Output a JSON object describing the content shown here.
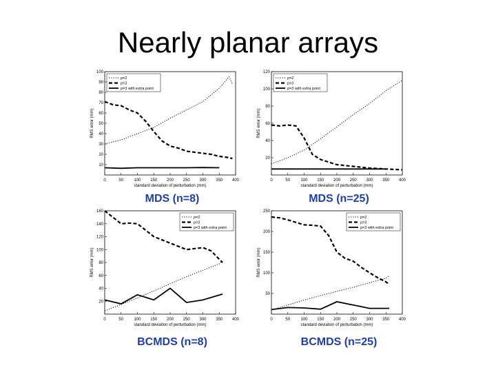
{
  "slide": {
    "title": "Nearly planar arrays"
  },
  "colors": {
    "caption": "#1f3fa6",
    "line": "#000000"
  },
  "chart_data": [
    {
      "type": "line",
      "caption": "MDS (n=8)",
      "xlabel": "standard deviation of perturbation (mm)",
      "ylabel": "RMS error (mm)",
      "xlim": [
        0,
        400
      ],
      "ylim": [
        0,
        100
      ],
      "xticks": [
        0,
        50,
        100,
        150,
        200,
        250,
        300,
        350,
        400
      ],
      "yticks": [
        10,
        20,
        30,
        40,
        50,
        60,
        70,
        80,
        90,
        100
      ],
      "legend": "top-left",
      "series": [
        {
          "name": "p=2",
          "style": "dotted",
          "x": [
            0,
            50,
            100,
            150,
            200,
            250,
            300,
            350,
            380,
            390
          ],
          "y": [
            30,
            34,
            40,
            46,
            55,
            63,
            71,
            84,
            95,
            88
          ]
        },
        {
          "name": "p=3",
          "style": "dashed",
          "x": [
            0,
            25,
            50,
            75,
            100,
            125,
            150,
            175,
            200,
            225,
            250,
            275,
            300,
            325,
            350,
            375,
            390
          ],
          "y": [
            71,
            68,
            67,
            63,
            60,
            52,
            42,
            33,
            28,
            26,
            23,
            22,
            21,
            20,
            18,
            17,
            16
          ]
        },
        {
          "name": "p=3 with extra point",
          "style": "solid",
          "x": [
            0,
            50,
            100,
            150,
            200,
            250,
            300,
            350
          ],
          "y": [
            7,
            6.5,
            7,
            7,
            7,
            7,
            7.2,
            7
          ]
        }
      ]
    },
    {
      "type": "line",
      "caption": "MDS (n=25)",
      "xlabel": "standard deviation of perturbation (mm)",
      "ylabel": "RMS error (mm)",
      "xlim": [
        0,
        400
      ],
      "ylim": [
        0,
        120
      ],
      "xticks": [
        0,
        50,
        100,
        150,
        200,
        250,
        300,
        350,
        400
      ],
      "yticks": [
        20,
        40,
        60,
        80,
        100,
        120
      ],
      "legend": "top-left",
      "series": [
        {
          "name": "p=2",
          "style": "dotted",
          "x": [
            0,
            50,
            100,
            150,
            200,
            250,
            300,
            350,
            400
          ],
          "y": [
            13,
            20,
            29,
            42,
            56,
            70,
            83,
            98,
            110
          ]
        },
        {
          "name": "p=3",
          "style": "dashed",
          "x": [
            0,
            25,
            50,
            75,
            100,
            125,
            150,
            175,
            200,
            250,
            300,
            350,
            400
          ],
          "y": [
            58,
            57,
            58,
            57,
            43,
            24,
            18,
            15,
            12,
            10,
            8,
            7,
            6
          ]
        },
        {
          "name": "p=3 with extra point",
          "style": "solid",
          "x": [
            0,
            50,
            100,
            150,
            200,
            250,
            300,
            350
          ],
          "y": [
            7,
            7,
            7,
            7,
            7,
            7,
            7,
            7
          ]
        }
      ]
    },
    {
      "type": "line",
      "caption": "BCMDS (n=8)",
      "xlabel": "standard deviation of perturbation (mm)",
      "ylabel": "RMS error (mm)",
      "xlim": [
        0,
        400
      ],
      "ylim": [
        0,
        160
      ],
      "xticks": [
        0,
        50,
        100,
        150,
        200,
        250,
        300,
        350,
        400
      ],
      "yticks": [
        20,
        40,
        60,
        80,
        100,
        120,
        140,
        160
      ],
      "legend": "top-right",
      "series": [
        {
          "name": "p=2",
          "style": "dotted",
          "x": [
            0,
            50,
            100,
            150,
            200,
            250,
            300,
            350,
            360
          ],
          "y": [
            5,
            15,
            25,
            36,
            47,
            58,
            68,
            78,
            82
          ]
        },
        {
          "name": "p=3",
          "style": "dashed",
          "x": [
            0,
            25,
            50,
            75,
            100,
            125,
            150,
            175,
            200,
            250,
            300,
            325,
            350,
            360
          ],
          "y": [
            160,
            150,
            140,
            141,
            140,
            130,
            120,
            115,
            110,
            100,
            103,
            98,
            85,
            80
          ]
        },
        {
          "name": "p=3 with extra point",
          "style": "solid",
          "x": [
            0,
            50,
            100,
            150,
            200,
            250,
            300,
            360
          ],
          "y": [
            22,
            16,
            30,
            22,
            40,
            18,
            22,
            31
          ]
        }
      ]
    },
    {
      "type": "line",
      "caption": "BCMDS (n=25)",
      "xlabel": "standard deviation of perturbation (mm)",
      "ylabel": "RMS error (mm)",
      "xlim": [
        0,
        400
      ],
      "ylim": [
        0,
        250
      ],
      "xticks": [
        0,
        50,
        100,
        150,
        200,
        250,
        300,
        350,
        400
      ],
      "yticks": [
        50,
        100,
        150,
        200,
        250
      ],
      "legend": "top-right",
      "series": [
        {
          "name": "p=2",
          "style": "dotted",
          "x": [
            0,
            50,
            100,
            150,
            200,
            250,
            300,
            350,
            360
          ],
          "y": [
            10,
            22,
            34,
            45,
            55,
            65,
            76,
            87,
            93
          ]
        },
        {
          "name": "p=3",
          "style": "dashed",
          "x": [
            0,
            25,
            50,
            75,
            100,
            125,
            150,
            175,
            200,
            225,
            250,
            275,
            300,
            325,
            350,
            360
          ],
          "y": [
            235,
            233,
            228,
            222,
            216,
            215,
            213,
            190,
            150,
            135,
            128,
            113,
            100,
            88,
            78,
            72
          ]
        },
        {
          "name": "p=3 with extra point",
          "style": "solid",
          "x": [
            0,
            50,
            100,
            150,
            200,
            250,
            300,
            350,
            360
          ],
          "y": [
            11,
            16,
            15,
            12,
            30,
            22,
            14,
            14,
            14
          ]
        }
      ]
    }
  ]
}
